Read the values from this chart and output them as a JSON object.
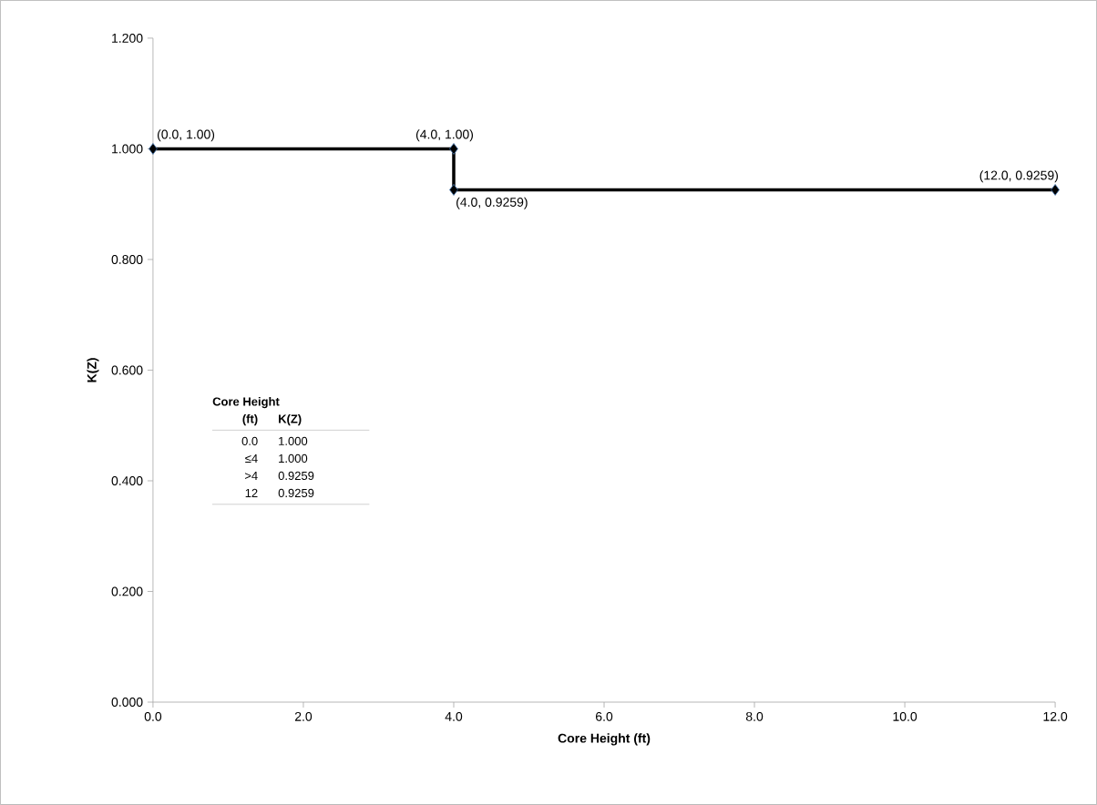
{
  "chart_data": {
    "type": "line",
    "xlabel": "Core Height (ft)",
    "ylabel": "K(Z)",
    "x": [
      0,
      4,
      4,
      12
    ],
    "series": [
      {
        "color": "#000000",
        "values": [
          1.0,
          1.0,
          0.9259,
          0.9259
        ],
        "value_labels": [
          "(0.0, 1.00)",
          "(4.0, 1.00)",
          "(4.0, 0.9259)",
          "(12.0, 0.9259)"
        ]
      }
    ],
    "xlim": [
      0,
      12
    ],
    "xticks": [
      {
        "value": 0,
        "label": "0.0"
      },
      {
        "value": 2,
        "label": "2.0"
      },
      {
        "value": 4,
        "label": "4.0"
      },
      {
        "value": 6,
        "label": "6.0"
      },
      {
        "value": 8,
        "label": "8.0"
      },
      {
        "value": 10,
        "label": "10.0"
      },
      {
        "value": 12,
        "label": "12.0"
      }
    ],
    "ylim": [
      0,
      1.2
    ],
    "yticks": [
      {
        "value": 0,
        "label": "0.000"
      },
      {
        "value": 0.2,
        "label": "0.200"
      },
      {
        "value": 0.4,
        "label": "0.400"
      },
      {
        "value": 0.6,
        "label": "0.600"
      },
      {
        "value": 0.8,
        "label": "0.800"
      },
      {
        "value": 1.0,
        "label": "1.000"
      },
      {
        "value": 1.2,
        "label": "1.200"
      }
    ],
    "grid": false,
    "marker": "diamond",
    "line_style": "solid",
    "annotations": [
      "Core Height",
      "(ft)",
      "K(Z)",
      "0.0",
      "1.000",
      "≤4",
      "1.000",
      ">4",
      "0.9259",
      "12",
      "0.9259"
    ]
  }
}
